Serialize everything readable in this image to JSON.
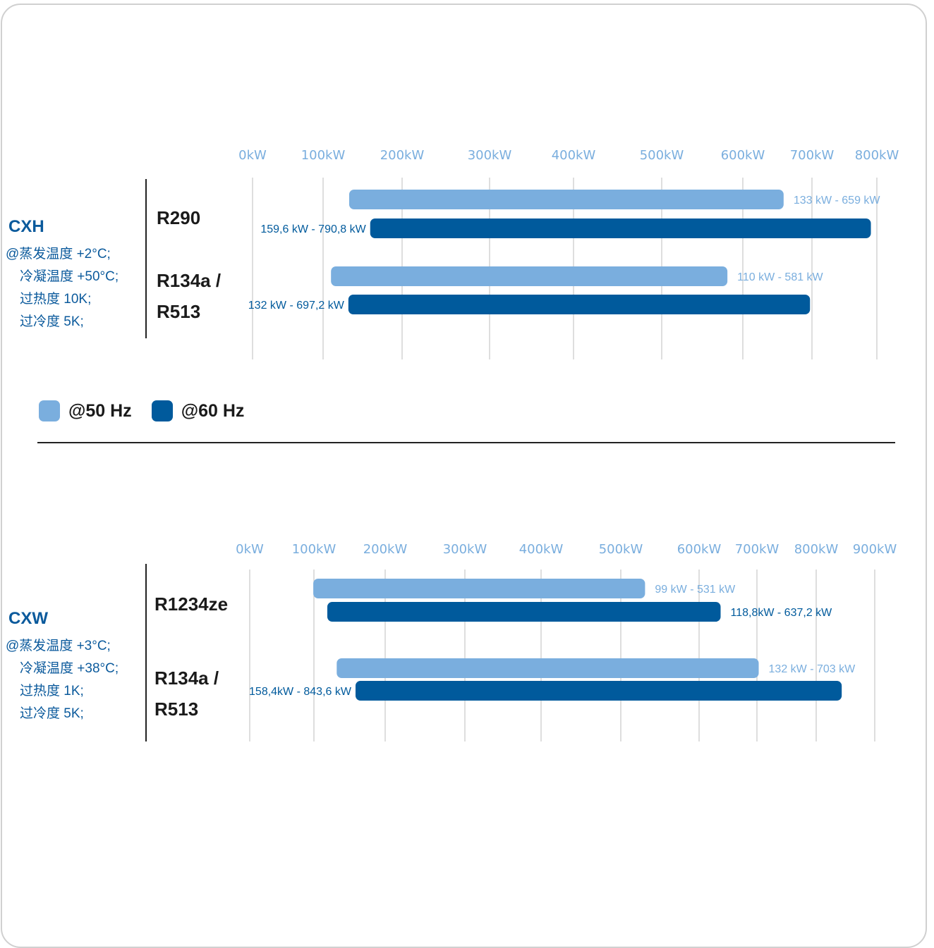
{
  "colors": {
    "hz50": "#7aaede",
    "hz60": "#005a9c",
    "model": "#0b5a9c",
    "grid": "#c8c8c8"
  },
  "legend": {
    "hz50": "@50 Hz",
    "hz60": "@60 Hz"
  },
  "cxh": {
    "model": "CXH",
    "conditions": [
      "@蒸发温度 +2°C;",
      "冷凝温度 +50°C;",
      "过热度 10K;",
      "过冷度 5K;"
    ],
    "refrigerants": [
      "R290",
      "R134a /",
      "R513"
    ]
  },
  "cxw": {
    "model": "CXW",
    "conditions": [
      "@蒸发温度 +3°C;",
      "冷凝温度 +38°C;",
      "过热度 1K;",
      "过冷度 5K;"
    ],
    "refrigerants": [
      "R1234ze",
      "R134a /",
      "R513"
    ]
  },
  "chart_data": [
    {
      "type": "bar",
      "orientation": "horizontal-range",
      "model": "CXH",
      "x_ticks": [
        "0kW",
        "100kW",
        "200kW",
        "300kW",
        "400kW",
        "500kW",
        "600kW",
        "700kW",
        "800kW"
      ],
      "xlim": [
        0,
        800
      ],
      "series": [
        {
          "name": "@50 Hz",
          "color": "#7aaede",
          "ranges": [
            {
              "refrigerant": "R290",
              "from": 133,
              "to": 659,
              "label": "133 kW - 659 kW"
            },
            {
              "refrigerant": "R134a / R513",
              "from": 110,
              "to": 581,
              "label": "110 kW - 581 kW"
            }
          ]
        },
        {
          "name": "@60 Hz",
          "color": "#005a9c",
          "ranges": [
            {
              "refrigerant": "R290",
              "from": 159.6,
              "to": 790.8,
              "label": "159,6 kW - 790,8 kW"
            },
            {
              "refrigerant": "R134a / R513",
              "from": 132,
              "to": 697.2,
              "label": "132 kW - 697,2 kW"
            }
          ]
        }
      ]
    },
    {
      "type": "bar",
      "orientation": "horizontal-range",
      "model": "CXW",
      "x_ticks": [
        "0kW",
        "100kW",
        "200kW",
        "300kW",
        "400kW",
        "500kW",
        "600kW",
        "700kW",
        "800kW",
        "900kW"
      ],
      "xlim": [
        0,
        900
      ],
      "series": [
        {
          "name": "@50 Hz",
          "color": "#7aaede",
          "ranges": [
            {
              "refrigerant": "R1234ze",
              "from": 99,
              "to": 531,
              "label": "99 kW - 531 kW"
            },
            {
              "refrigerant": "R134a / R513",
              "from": 132,
              "to": 703,
              "label": "132 kW - 703 kW"
            }
          ]
        },
        {
          "name": "@60 Hz",
          "color": "#005a9c",
          "ranges": [
            {
              "refrigerant": "R1234ze",
              "from": 118.8,
              "to": 637.2,
              "label": "118,8kW - 637,2 kW"
            },
            {
              "refrigerant": "R134a / R513",
              "from": 158.4,
              "to": 843.6,
              "label": "158,4kW - 843,6 kW"
            }
          ]
        }
      ]
    }
  ]
}
